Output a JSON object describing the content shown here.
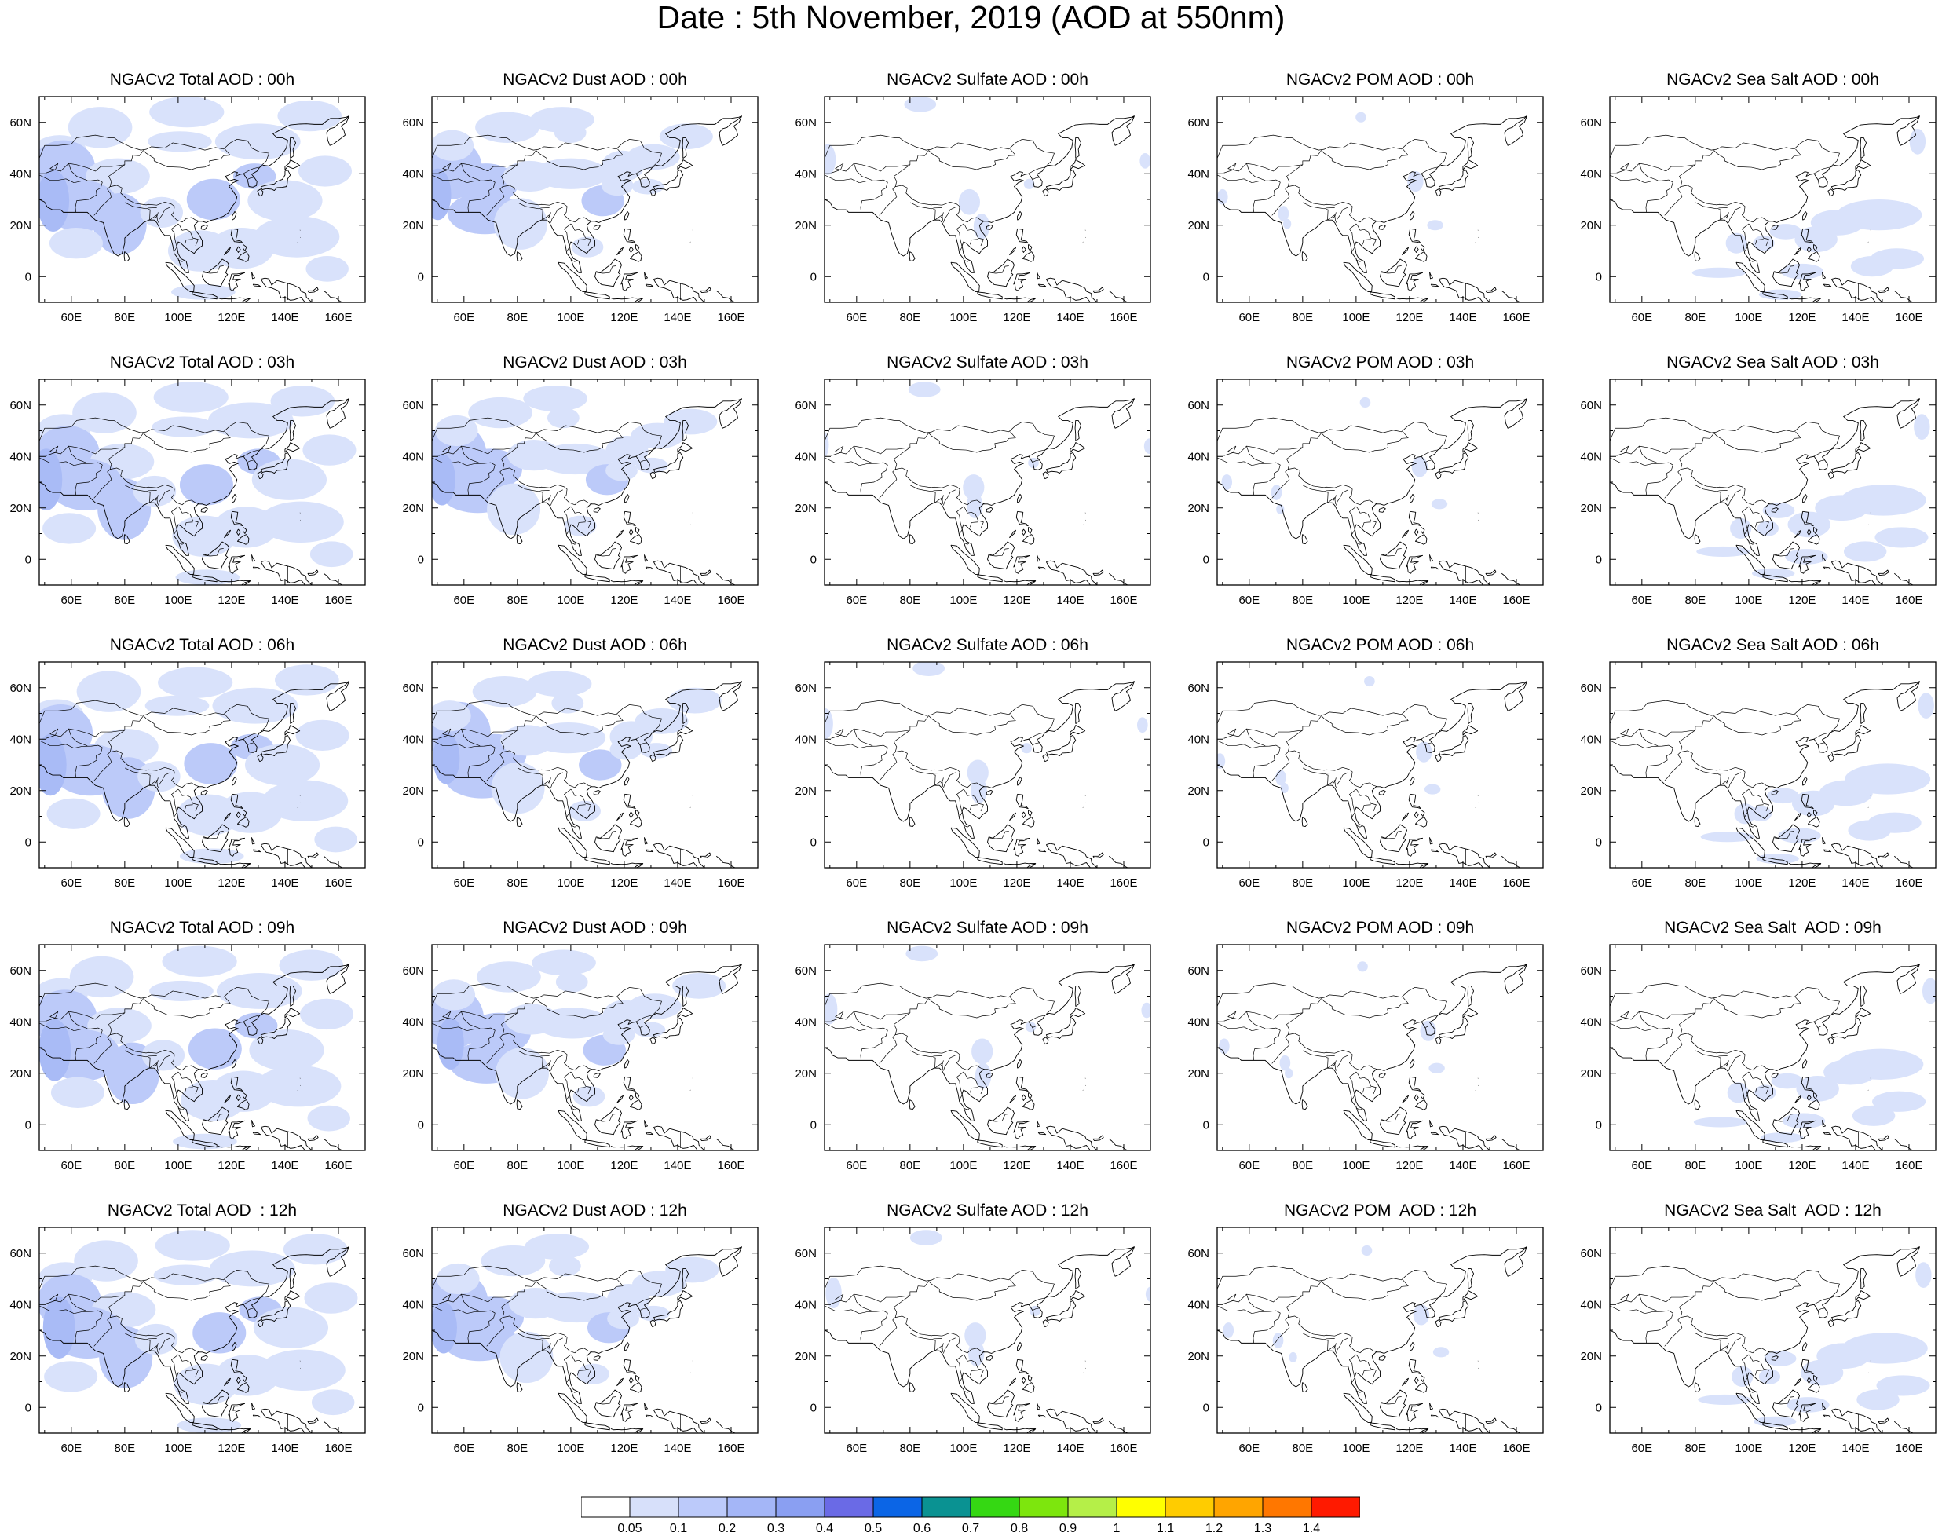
{
  "title": "Date : 5th November, 2019 (AOD at 550nm)",
  "panels": [
    {
      "title": "NGACv2 Total AOD : 00h",
      "species": "total",
      "hour": "00h"
    },
    {
      "title": "NGACv2 Dust AOD : 00h",
      "species": "dust",
      "hour": "00h"
    },
    {
      "title": "NGACv2 Sulfate AOD : 00h",
      "species": "sulfate",
      "hour": "00h"
    },
    {
      "title": "NGACv2 POM AOD : 00h",
      "species": "pom",
      "hour": "00h"
    },
    {
      "title": "NGACv2 Sea Salt AOD : 00h",
      "species": "seasalt",
      "hour": "00h"
    },
    {
      "title": "NGACv2 Total AOD : 03h",
      "species": "total",
      "hour": "03h"
    },
    {
      "title": "NGACv2 Dust AOD : 03h",
      "species": "dust",
      "hour": "03h"
    },
    {
      "title": "NGACv2 Sulfate AOD : 03h",
      "species": "sulfate",
      "hour": "03h"
    },
    {
      "title": "NGACv2 POM AOD : 03h",
      "species": "pom",
      "hour": "03h"
    },
    {
      "title": "NGACv2 Sea Salt AOD : 03h",
      "species": "seasalt",
      "hour": "03h"
    },
    {
      "title": "NGACv2 Total AOD : 06h",
      "species": "total",
      "hour": "06h"
    },
    {
      "title": "NGACv2 Dust AOD : 06h",
      "species": "dust",
      "hour": "06h"
    },
    {
      "title": "NGACv2 Sulfate AOD : 06h",
      "species": "sulfate",
      "hour": "06h"
    },
    {
      "title": "NGACv2 POM AOD : 06h",
      "species": "pom",
      "hour": "06h"
    },
    {
      "title": "NGACv2 Sea Salt AOD : 06h",
      "species": "seasalt",
      "hour": "06h"
    },
    {
      "title": "NGACv2 Total AOD : 09h",
      "species": "total",
      "hour": "09h"
    },
    {
      "title": "NGACv2 Dust AOD : 09h",
      "species": "dust",
      "hour": "09h"
    },
    {
      "title": "NGACv2 Sulfate AOD : 09h",
      "species": "sulfate",
      "hour": "09h"
    },
    {
      "title": "NGACv2 POM AOD : 09h",
      "species": "pom",
      "hour": "09h"
    },
    {
      "title": "NGACv2 Sea Salt  AOD : 09h",
      "species": "seasalt",
      "hour": "09h"
    },
    {
      "title": "NGACv2 Total AOD  : 12h",
      "species": "total",
      "hour": "12h"
    },
    {
      "title": "NGACv2 Dust AOD : 12h",
      "species": "dust",
      "hour": "12h"
    },
    {
      "title": "NGACv2 Sulfate AOD : 12h",
      "species": "sulfate",
      "hour": "12h"
    },
    {
      "title": "NGACv2 POM  AOD : 12h",
      "species": "pom",
      "hour": "12h"
    },
    {
      "title": "NGACv2 Sea Salt  AOD : 12h",
      "species": "seasalt",
      "hour": "12h"
    }
  ],
  "axes": {
    "x_ticks": [
      "60E",
      "80E",
      "100E",
      "120E",
      "140E",
      "160E"
    ],
    "x_values": [
      60,
      80,
      100,
      120,
      140,
      160
    ],
    "y_ticks": [
      "60N",
      "40N",
      "20N",
      "0"
    ],
    "y_values": [
      60,
      40,
      20,
      0
    ],
    "lon_range": [
      48,
      170
    ],
    "lat_range": [
      -10,
      70
    ]
  },
  "colorbar": {
    "labels": [
      "0.05",
      "0.1",
      "0.2",
      "0.3",
      "0.4",
      "0.5",
      "0.6",
      "0.7",
      "0.8",
      "0.9",
      "1",
      "1.1",
      "1.2",
      "1.3",
      "1.4"
    ],
    "colors": [
      "#ffffff",
      "#d7e0fa",
      "#bccafa",
      "#a4b6f7",
      "#8a9ff2",
      "#6a6ae6",
      "#0b65e6",
      "#0a9292",
      "#35d813",
      "#7de60d",
      "#b5ef48",
      "#ffff00",
      "#ffcc00",
      "#ffa500",
      "#ff7700",
      "#ff1a00"
    ]
  }
}
